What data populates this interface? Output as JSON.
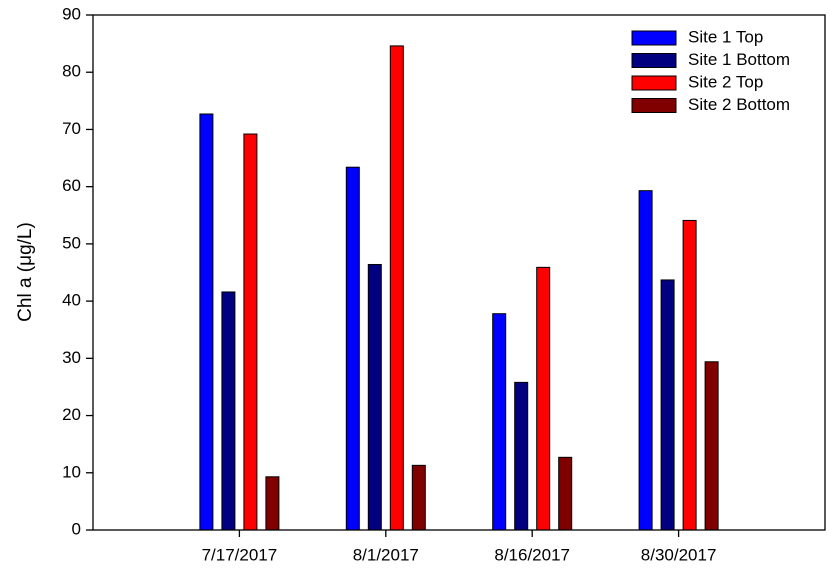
{
  "chart_data": {
    "type": "bar",
    "y_label": "Chl a (μg/L)",
    "categories": [
      "7/17/2017",
      "8/1/2017",
      "8/16/2017",
      "8/30/2017"
    ],
    "series": [
      {
        "name": "Site 1 Top",
        "color": "#0000ff",
        "values": [
          72.7,
          63.4,
          37.8,
          59.3
        ]
      },
      {
        "name": "Site 1 Bottom",
        "color": "#000080",
        "values": [
          41.6,
          46.4,
          25.8,
          43.7
        ]
      },
      {
        "name": "Site 2 Top",
        "color": "#ff0000",
        "values": [
          69.2,
          84.6,
          45.9,
          54.1
        ]
      },
      {
        "name": "Site 2 Bottom",
        "color": "#800000",
        "values": [
          9.3,
          11.3,
          12.7,
          29.4
        ]
      }
    ],
    "ylim": [
      0,
      90
    ],
    "yticks": [
      0,
      10,
      20,
      30,
      40,
      50,
      60,
      70,
      80,
      90
    ],
    "grid": false,
    "legend": "upper right"
  }
}
